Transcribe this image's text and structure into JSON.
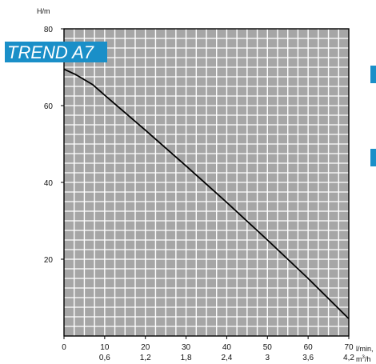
{
  "chart_data": {
    "type": "line",
    "title": "TREND A7",
    "ylabel": "H/m",
    "xlabel": "l/min,",
    "xlabel2_prefix": "m",
    "xlabel2_sup": "3",
    "xlabel2_suffix": "/h",
    "xlim": [
      0,
      70
    ],
    "ylim": [
      0,
      80
    ],
    "x_ticks": [
      {
        "value": 0,
        "label": "0",
        "label2": ""
      },
      {
        "value": 10,
        "label": "10",
        "label2": "0,6"
      },
      {
        "value": 20,
        "label": "20",
        "label2": "1,2"
      },
      {
        "value": 30,
        "label": "30",
        "label2": "1,8"
      },
      {
        "value": 40,
        "label": "40",
        "label2": "2,4"
      },
      {
        "value": 50,
        "label": "50",
        "label2": "3"
      },
      {
        "value": 60,
        "label": "60",
        "label2": "3,6"
      },
      {
        "value": 70,
        "label": "70",
        "label2": "4,2"
      }
    ],
    "y_ticks": [
      {
        "value": 20,
        "label": "20"
      },
      {
        "value": 40,
        "label": "40"
      },
      {
        "value": 60,
        "label": "60"
      },
      {
        "value": 80,
        "label": "80"
      }
    ],
    "grid": true,
    "background_color": "#a6a6a6",
    "grid_color": "#ffffff",
    "line_color": "#000000",
    "title_box_color": "#1a8fc8",
    "side_tab_color": "#1a8fc8",
    "series": [
      {
        "x": [
          0,
          3,
          7,
          10,
          20,
          30,
          40,
          50,
          60,
          70
        ],
        "y": [
          69.5,
          68,
          65.5,
          62.7,
          53.6,
          44.3,
          34.8,
          25,
          15,
          4.5
        ]
      }
    ]
  }
}
